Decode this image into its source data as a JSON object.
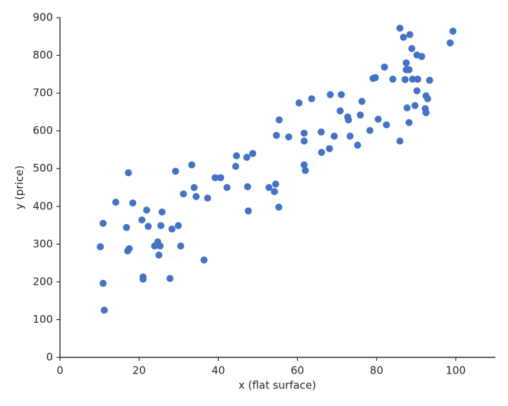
{
  "chart_data": {
    "type": "scatter",
    "xlabel": "x (flat surface)",
    "ylabel": "y (price)",
    "color": "#4472c4",
    "x": [
      10.2,
      10.9,
      10.9,
      11.2,
      14.1,
      16.8,
      17.1,
      17.5,
      17.3,
      18.4,
      20.7,
      21.0,
      21.0,
      21.9,
      22.3,
      23.9,
      24.7,
      25.0,
      25.3,
      25.5,
      25.8,
      27.8,
      28.3,
      29.2,
      29.9,
      30.5,
      31.2,
      33.3,
      33.9,
      34.4,
      36.4,
      37.3,
      39.2,
      40.6,
      42.2,
      44.4,
      44.6,
      47.2,
      47.4,
      47.6,
      48.7,
      52.8,
      54.2,
      54.5,
      54.7,
      55.3,
      55.4,
      57.8,
      60.4,
      61.7,
      61.7,
      61.7,
      62.0,
      63.6,
      66.0,
      66.1,
      68.1,
      68.3,
      69.3,
      70.8,
      71.1,
      72.7,
      72.9,
      73.3,
      75.2,
      75.9,
      76.3,
      78.3,
      79.1,
      79.7,
      80.4,
      82.0,
      82.5,
      84.1,
      85.9,
      85.9,
      86.8,
      87.2,
      87.5,
      87.5,
      87.7,
      88.2,
      88.2,
      88.4,
      88.9,
      89.1,
      89.7,
      90.2,
      90.2,
      90.4,
      91.4,
      92.3,
      92.5,
      92.5,
      92.9,
      93.4,
      98.6,
      99.3
    ],
    "values": [
      293,
      355,
      196,
      125,
      411,
      344,
      282,
      288,
      489,
      409,
      364,
      213,
      207,
      390,
      347,
      295,
      306,
      271,
      295,
      349,
      385,
      209,
      340,
      493,
      349,
      295,
      433,
      510,
      450,
      426,
      258,
      422,
      476,
      476,
      450,
      506,
      534,
      530,
      452,
      388,
      540,
      450,
      439,
      459,
      588,
      398,
      629,
      584,
      674,
      594,
      573,
      510,
      495,
      685,
      597,
      543,
      553,
      696,
      586,
      653,
      696,
      637,
      629,
      586,
      562,
      642,
      678,
      601,
      739,
      741,
      631,
      769,
      616,
      737,
      872,
      573,
      848,
      736,
      780,
      762,
      661,
      622,
      762,
      855,
      818,
      737,
      667,
      801,
      706,
      737,
      797,
      659,
      648,
      693,
      685,
      734,
      833,
      864
    ],
    "xlim": [
      0,
      110
    ],
    "ylim": [
      0,
      900
    ],
    "xticks": [
      0,
      20,
      40,
      60,
      80,
      100
    ],
    "yticks": [
      0,
      100,
      200,
      300,
      400,
      500,
      600,
      700,
      800,
      900
    ]
  }
}
